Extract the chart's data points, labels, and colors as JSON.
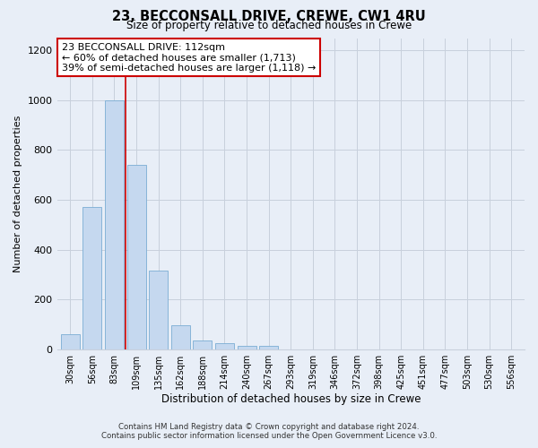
{
  "title_line1": "23, BECCONSALL DRIVE, CREWE, CW1 4RU",
  "title_line2": "Size of property relative to detached houses in Crewe",
  "xlabel": "Distribution of detached houses by size in Crewe",
  "ylabel": "Number of detached properties",
  "annotation_line1": "23 BECCONSALL DRIVE: 112sqm",
  "annotation_line2": "← 60% of detached houses are smaller (1,713)",
  "annotation_line3": "39% of semi-detached houses are larger (1,118) →",
  "footer_line1": "Contains HM Land Registry data © Crown copyright and database right 2024.",
  "footer_line2": "Contains public sector information licensed under the Open Government Licence v3.0.",
  "categories": [
    "30sqm",
    "56sqm",
    "83sqm",
    "109sqm",
    "135sqm",
    "162sqm",
    "188sqm",
    "214sqm",
    "240sqm",
    "267sqm",
    "293sqm",
    "319sqm",
    "346sqm",
    "372sqm",
    "398sqm",
    "425sqm",
    "451sqm",
    "477sqm",
    "503sqm",
    "530sqm",
    "556sqm"
  ],
  "values": [
    60,
    570,
    1000,
    740,
    315,
    95,
    35,
    25,
    15,
    15,
    0,
    0,
    0,
    0,
    0,
    0,
    0,
    0,
    0,
    0,
    0
  ],
  "highlight_index": 3,
  "bar_color": "#c5d8ef",
  "bar_edge_color": "#7aadd4",
  "annotation_box_color": "#ffffff",
  "annotation_box_edge_color": "#cc0000",
  "grid_color": "#c8d0dc",
  "background_color": "#e8eef7",
  "ylim": [
    0,
    1250
  ],
  "yticks": [
    0,
    200,
    400,
    600,
    800,
    1000,
    1200
  ],
  "vline_color": "#cc0000",
  "vline_x": 3.0
}
